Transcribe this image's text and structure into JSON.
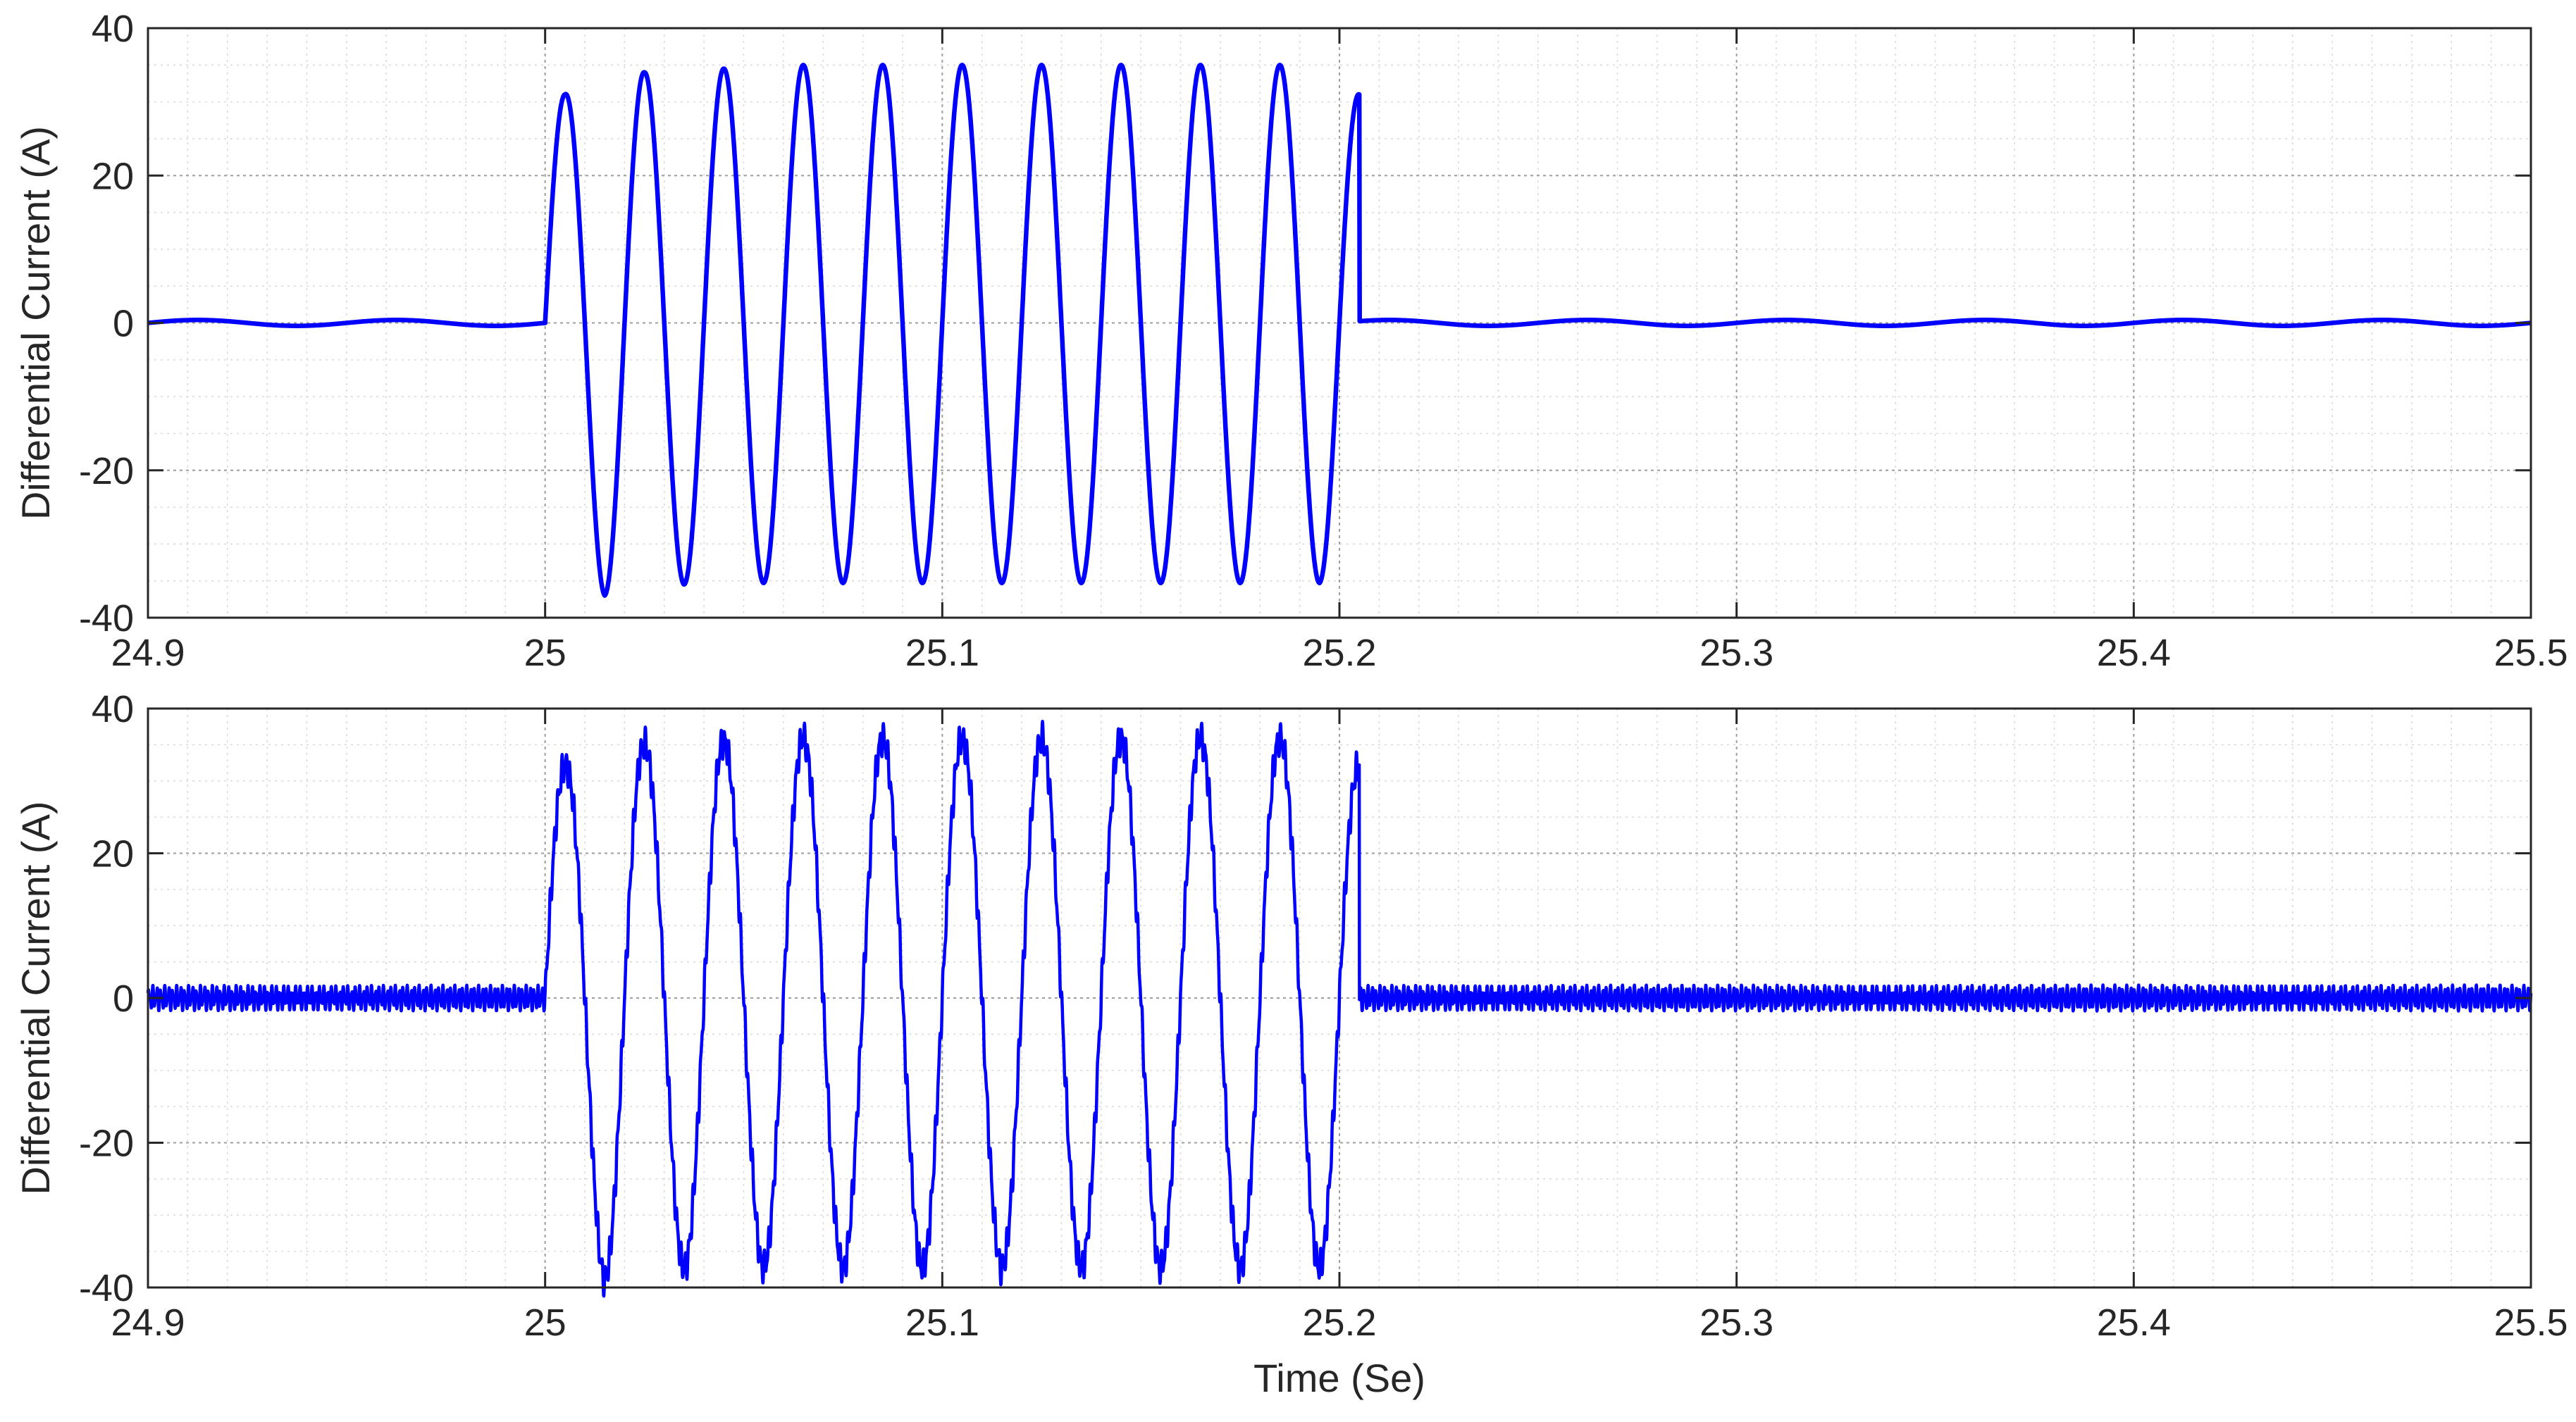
{
  "chart_data": [
    {
      "type": "line",
      "panel": "top",
      "title": "",
      "xlabel": "",
      "ylabel": "Differential Current (A)",
      "xlim": [
        24.9,
        25.5
      ],
      "ylim": [
        -40,
        40
      ],
      "xticks": [
        "24.9",
        "25",
        "25.1",
        "25.2",
        "25.3",
        "25.4",
        "25.5"
      ],
      "yticks": [
        "40",
        "20",
        "0",
        "-20",
        "-40"
      ],
      "grid": "on (major and minor, dotted)",
      "line_color": "#0000ff",
      "series": [
        {
          "signal": "clean 50 Hz burst with small residual ripple outside the burst",
          "burst_start": 25.0,
          "burst_end": 25.205,
          "frequency_hz": 50,
          "cycle_peaks": [
            {
              "x": 25.005,
              "y": 31
            },
            {
              "x": 25.015,
              "y": -37
            },
            {
              "x": 25.025,
              "y": 34
            },
            {
              "x": 25.035,
              "y": -35.5
            },
            {
              "x": 25.045,
              "y": 34.5
            },
            {
              "x": 25.055,
              "y": -35.3
            },
            {
              "x": 25.065,
              "y": 35
            },
            {
              "x": 25.075,
              "y": -35.3
            },
            {
              "x": 25.085,
              "y": 35
            },
            {
              "x": 25.095,
              "y": -35.3
            },
            {
              "x": 25.105,
              "y": 35
            },
            {
              "x": 25.115,
              "y": -35.3
            },
            {
              "x": 25.125,
              "y": 35
            },
            {
              "x": 25.135,
              "y": -35.3
            },
            {
              "x": 25.145,
              "y": 35
            },
            {
              "x": 25.155,
              "y": -35.3
            },
            {
              "x": 25.165,
              "y": 35
            },
            {
              "x": 25.175,
              "y": -35.3
            },
            {
              "x": 25.185,
              "y": 35
            },
            {
              "x": 25.195,
              "y": -35.3
            },
            {
              "x": 25.205,
              "y": 31
            }
          ],
          "baseline_ripple_amplitude": 0.4
        }
      ]
    },
    {
      "type": "line",
      "panel": "bottom",
      "title": "",
      "xlabel": "Time (Se)",
      "ylabel": "Differential Current (A)",
      "xlim": [
        24.9,
        25.5
      ],
      "ylim": [
        -40,
        40
      ],
      "xticks": [
        "24.9",
        "25",
        "25.1",
        "25.2",
        "25.3",
        "25.4",
        "25.5"
      ],
      "yticks": [
        "40",
        "20",
        "0",
        "-20",
        "-40"
      ],
      "grid": "on (major and minor, dotted)",
      "line_color": "#0000ff",
      "series": [
        {
          "signal": "noisy 50 Hz burst with high-frequency ripple on the baseline",
          "burst_start": 25.0,
          "burst_end": 25.205,
          "frequency_hz": 50,
          "cycle_peaks": [
            {
              "x": 25.005,
              "y": 32
            },
            {
              "x": 25.015,
              "y": -39
            },
            {
              "x": 25.025,
              "y": 35
            },
            {
              "x": 25.035,
              "y": -37.5
            },
            {
              "x": 25.045,
              "y": 35.5
            },
            {
              "x": 25.055,
              "y": -37.3
            },
            {
              "x": 25.065,
              "y": 35.8
            },
            {
              "x": 25.075,
              "y": -37.3
            },
            {
              "x": 25.085,
              "y": 35.8
            },
            {
              "x": 25.095,
              "y": -37.3
            },
            {
              "x": 25.105,
              "y": 35.8
            },
            {
              "x": 25.115,
              "y": -37.3
            },
            {
              "x": 25.125,
              "y": 35.8
            },
            {
              "x": 25.135,
              "y": -37.3
            },
            {
              "x": 25.145,
              "y": 35.8
            },
            {
              "x": 25.155,
              "y": -37.3
            },
            {
              "x": 25.165,
              "y": 35.8
            },
            {
              "x": 25.175,
              "y": -37.3
            },
            {
              "x": 25.185,
              "y": 35.8
            },
            {
              "x": 25.195,
              "y": -37.3
            },
            {
              "x": 25.205,
              "y": 32
            }
          ],
          "baseline_ripple_amplitude": 1.8
        }
      ]
    }
  ]
}
